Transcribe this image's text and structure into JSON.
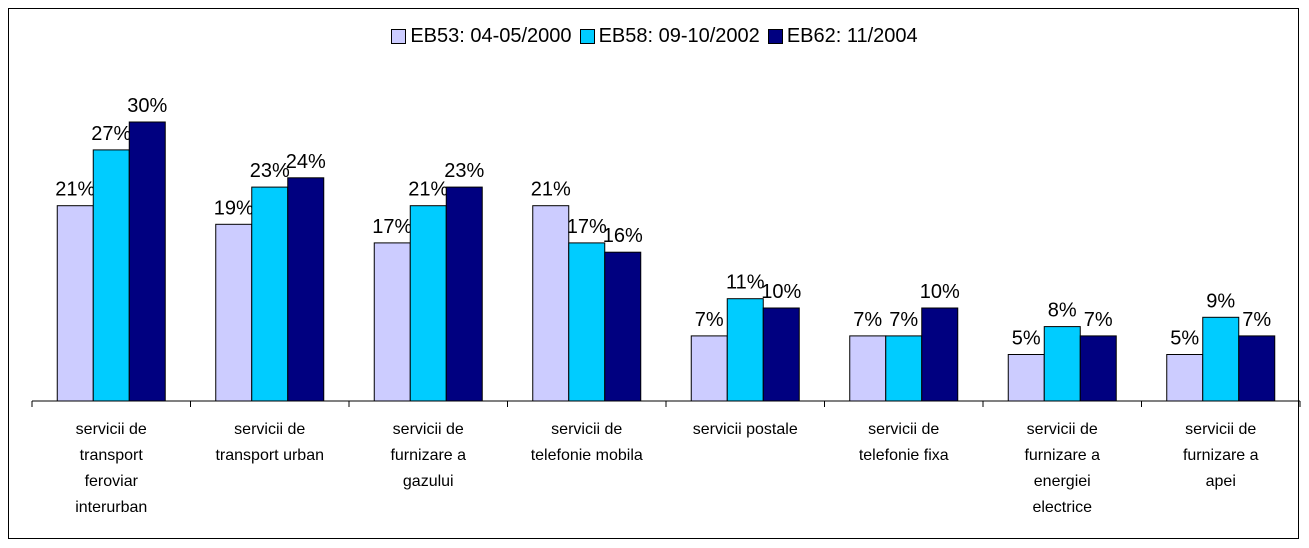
{
  "chart_data": {
    "type": "bar",
    "categories": [
      "servicii de\ntransport\nferoviar\ninterurban",
      "servicii de\ntransport urban",
      "servicii de\nfurnizare a\ngazului",
      "servicii de\ntelefonie mobila",
      "servicii postale",
      "servicii de\ntelefonie fixa",
      "servicii de\nfurnizare a\nenergiei\nelectrice",
      "servicii de\nfurnizare a\napei"
    ],
    "series": [
      {
        "name": "EB53: 04-05/2000",
        "color": "#ccccff",
        "values": [
          21,
          19,
          17,
          21,
          7,
          7,
          5,
          5
        ],
        "value_labels": [
          "21%",
          "19%",
          "17%",
          "21%",
          "7%",
          "7%",
          "5%",
          "5%"
        ]
      },
      {
        "name": "EB58: 09-10/2002",
        "color": "#00ccff",
        "values": [
          27,
          23,
          21,
          17,
          11,
          7,
          8,
          9
        ],
        "value_labels": [
          "27%",
          "23%",
          "21%",
          "17%",
          "11%",
          "7%",
          "8%",
          "9%"
        ]
      },
      {
        "name": "EB62: 11/2004",
        "color": "#000080",
        "values": [
          30,
          24,
          23,
          16,
          10,
          10,
          7,
          7
        ],
        "value_labels": [
          "30%",
          "24%",
          "23%",
          "16%",
          "10%",
          "10%",
          "7%",
          "7%"
        ]
      }
    ],
    "legend": "top"
  }
}
